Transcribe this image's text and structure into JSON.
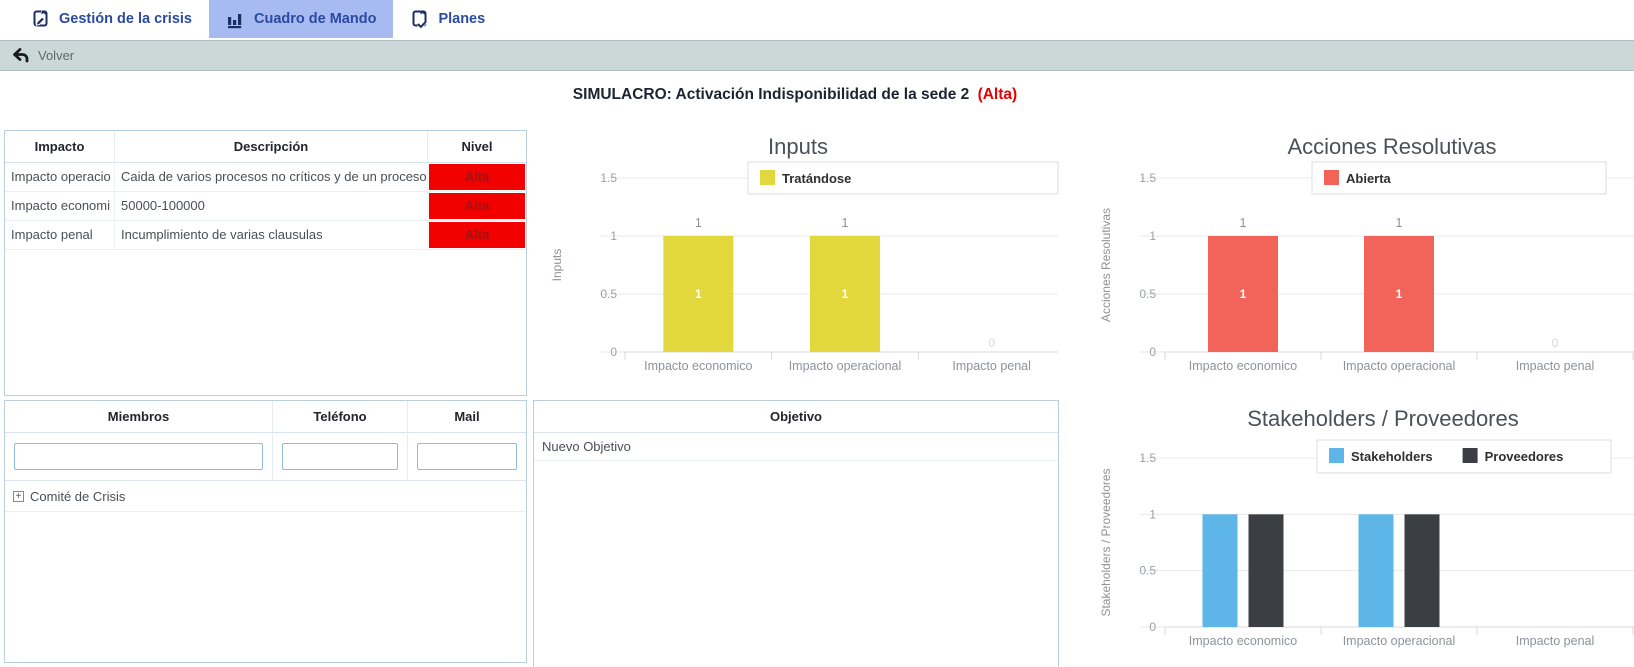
{
  "tabs": [
    {
      "label": "Gestión de la crisis",
      "icon": "page-edit-icon",
      "active": false
    },
    {
      "label": "Cuadro de Mando",
      "icon": "bar-chart-icon",
      "active": true
    },
    {
      "label": "Planes",
      "icon": "page-check-icon",
      "active": false
    }
  ],
  "toolbar": {
    "back_label": "Volver"
  },
  "page_title": {
    "text": "SIMULACRO: Activación Indisponibilidad de la sede 2",
    "level": "(Alta)"
  },
  "impact_table": {
    "headers": [
      "Impacto",
      "Descripción",
      "Nivel"
    ],
    "rows": [
      {
        "impacto": "Impacto operacio",
        "descripcion": "Caida de varios procesos no críticos y de un proceso cr",
        "nivel": "Alta"
      },
      {
        "impacto": "Impacto economi",
        "descripcion": "50000-100000",
        "nivel": "Alta"
      },
      {
        "impacto": "Impacto penal",
        "descripcion": "Incumplimiento de varias clausulas",
        "nivel": "Alta"
      }
    ]
  },
  "members_table": {
    "headers": [
      "Miembros",
      "Teléfono",
      "Mail"
    ],
    "filters": [
      {
        "value": ""
      },
      {
        "value": ""
      },
      {
        "value": ""
      }
    ],
    "groups": [
      {
        "label": "Comité de Crisis"
      }
    ]
  },
  "objetivo_panel": {
    "header": "Objetivo",
    "rows": [
      "Nuevo Objetivo"
    ]
  },
  "colors": {
    "badge_bg": "#f20000",
    "badge_text": "#a11212",
    "active_tab_bg": "#a7bbf2",
    "tab_text": "#2b4aa0",
    "toolbar_bg": "#ccd8d8",
    "title_alert": "#e60000",
    "panel_border": "#b9cede"
  },
  "chart_data": [
    {
      "type": "bar",
      "title": "Inputs",
      "ylabel": "Inputs",
      "categories": [
        "Impacto economico",
        "Impacto operacional",
        "Impacto penal"
      ],
      "series": [
        {
          "name": "Tratándose",
          "color": "#e2d83e",
          "values": [
            1,
            1,
            0
          ]
        }
      ],
      "ylim": [
        0,
        1.5
      ],
      "yticks": [
        0,
        0.5,
        1,
        1.5
      ],
      "grid": true,
      "legend_position": "top",
      "show_value_labels": true
    },
    {
      "type": "bar",
      "title": "Acciones Resolutivas",
      "ylabel": "Acciones Resolutivas",
      "categories": [
        "Impacto economico",
        "Impacto operacional",
        "Impacto penal"
      ],
      "series": [
        {
          "name": "Abierta",
          "color": "#f2635a",
          "values": [
            1,
            1,
            0
          ]
        }
      ],
      "ylim": [
        0,
        1.5
      ],
      "yticks": [
        0,
        0.5,
        1,
        1.5
      ],
      "grid": true,
      "legend_position": "top",
      "show_value_labels": true
    },
    {
      "type": "bar",
      "title": "Stakeholders / Proveedores",
      "ylabel": "Stakeholders / Proveedores",
      "categories": [
        "Impacto economico",
        "Impacto operacional",
        "Impacto penal"
      ],
      "series": [
        {
          "name": "Stakeholders",
          "color": "#5db5e8",
          "values": [
            1,
            1,
            0
          ]
        },
        {
          "name": "Proveedores",
          "color": "#3b3e43",
          "values": [
            1,
            1,
            0
          ]
        }
      ],
      "ylim": [
        0,
        1.5
      ],
      "yticks": [
        0,
        0.5,
        1,
        1.5
      ],
      "grid": true,
      "legend_position": "top",
      "show_value_labels": false
    }
  ]
}
